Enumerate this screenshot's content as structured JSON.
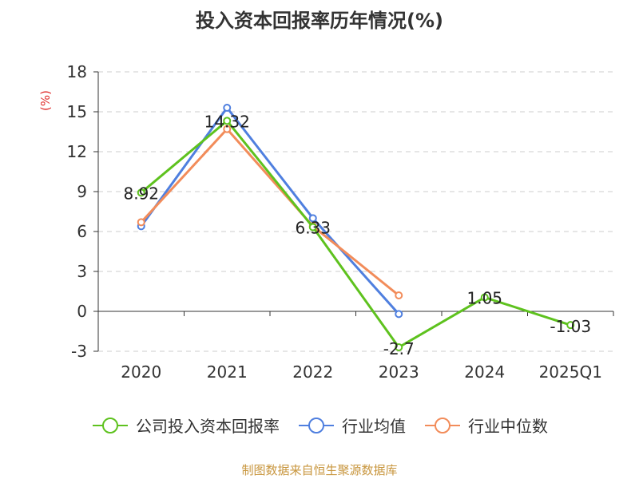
{
  "chart_data": {
    "type": "line",
    "title": "投入资本回报率历年情况(%)",
    "ylabel": "(%)",
    "xlabel": "",
    "categories": [
      "2020",
      "2021",
      "2022",
      "2023",
      "2024",
      "2025Q1"
    ],
    "ylim": [
      -3,
      18
    ],
    "yticks": [
      -3,
      0,
      3,
      6,
      9,
      12,
      15,
      18
    ],
    "grid": true,
    "legend_position": "bottom",
    "series": [
      {
        "name": "公司投入资本回报率",
        "color": "#5ec21e",
        "values": [
          8.92,
          14.32,
          6.33,
          -2.7,
          1.05,
          -1.03
        ],
        "labels": [
          "8.92",
          "14.32",
          "6.33",
          "-2.7",
          "1.05",
          "-1.03"
        ]
      },
      {
        "name": "行业均值",
        "color": "#4f7fdf",
        "values": [
          6.4,
          15.3,
          7.0,
          -0.2,
          null,
          null
        ]
      },
      {
        "name": "行业中位数",
        "color": "#f28c5a",
        "values": [
          6.7,
          13.7,
          6.4,
          1.2,
          null,
          null
        ]
      }
    ]
  },
  "source": "制图数据来自恒生聚源数据库"
}
